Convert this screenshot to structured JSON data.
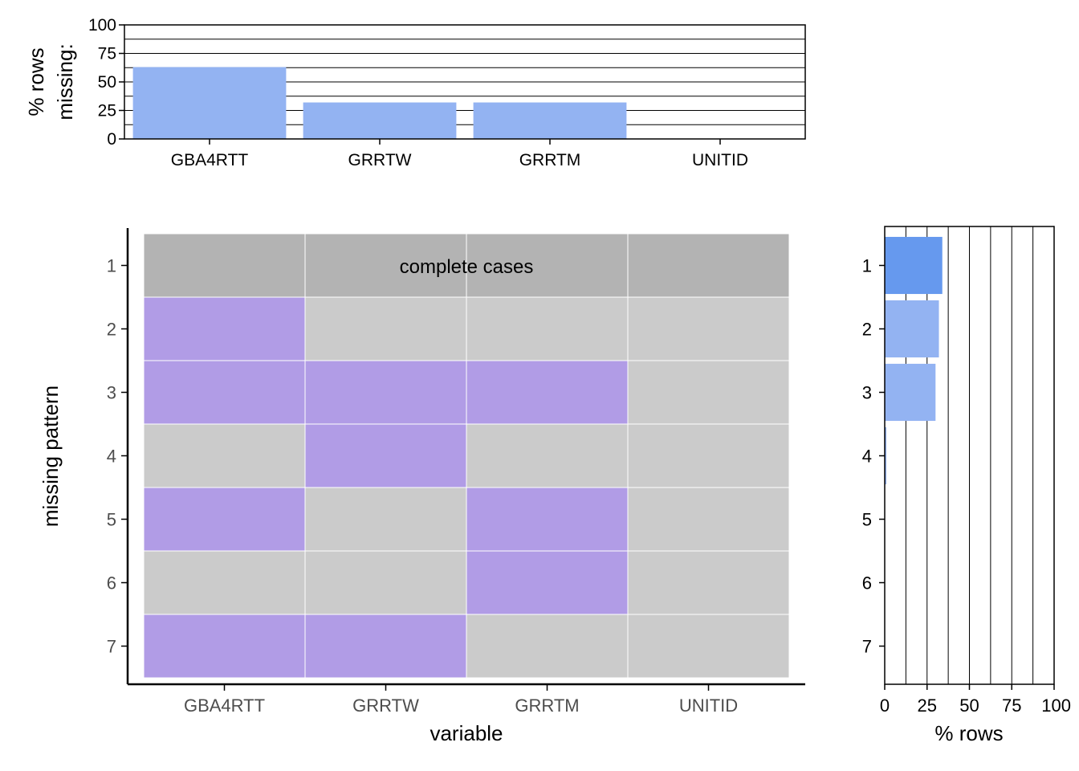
{
  "colors": {
    "bar_fill": "#93b3f2",
    "bar_fill_highlight": "#6699ee",
    "missing_cell": "#b19ce6",
    "present_cell": "#cbcbcb",
    "complete_row": "#b3b3b3",
    "tile_gap": "#ffffff",
    "axis": "#000000",
    "tick_label_heatmap": "#4d4d4d",
    "tick_label_bars": "#000000"
  },
  "chart_data": [
    {
      "id": "top_missing_by_variable",
      "type": "bar",
      "categories": [
        "GBA4RTT",
        "GRRTW",
        "GRRTM",
        "UNITID"
      ],
      "values": [
        63,
        32,
        32,
        0
      ],
      "ylabel_lines": [
        "% rows",
        "missing:"
      ],
      "ylim": [
        0,
        100
      ],
      "yticks": [
        0,
        25,
        50,
        75,
        100
      ],
      "ytick_labels": [
        "0",
        "25",
        "50",
        "75",
        "100"
      ],
      "gridlines": [
        0,
        12.5,
        25,
        37.5,
        50,
        62.5,
        75,
        87.5,
        100
      ],
      "grid": true
    },
    {
      "id": "missing_pattern_heatmap",
      "type": "heatmap",
      "xlabel": "variable",
      "ylabel": "missing pattern",
      "columns": [
        "GBA4RTT",
        "GRRTW",
        "GRRTM",
        "UNITID"
      ],
      "rows": [
        "1",
        "2",
        "3",
        "4",
        "5",
        "6",
        "7"
      ],
      "cells": [
        [
          "complete",
          "complete",
          "complete",
          "complete"
        ],
        [
          "missing",
          "present",
          "present",
          "present"
        ],
        [
          "missing",
          "missing",
          "missing",
          "present"
        ],
        [
          "present",
          "missing",
          "present",
          "present"
        ],
        [
          "missing",
          "present",
          "missing",
          "present"
        ],
        [
          "present",
          "present",
          "missing",
          "present"
        ],
        [
          "missing",
          "missing",
          "present",
          "present"
        ]
      ],
      "annotation": "complete cases"
    },
    {
      "id": "pattern_frequency",
      "type": "bar",
      "orientation": "horizontal",
      "categories": [
        "1",
        "2",
        "3",
        "4",
        "5",
        "6",
        "7"
      ],
      "values": [
        34,
        32,
        30,
        1,
        0,
        0,
        0
      ],
      "highlight_index": 0,
      "xlabel": "% rows",
      "xlim": [
        0,
        100
      ],
      "xticks": [
        0,
        25,
        50,
        75,
        100
      ],
      "xtick_labels": [
        "0",
        "25",
        "50",
        "75",
        "100"
      ],
      "gridlines": [
        0,
        12.5,
        25,
        37.5,
        50,
        62.5,
        75,
        87.5,
        100
      ],
      "grid": true
    }
  ]
}
